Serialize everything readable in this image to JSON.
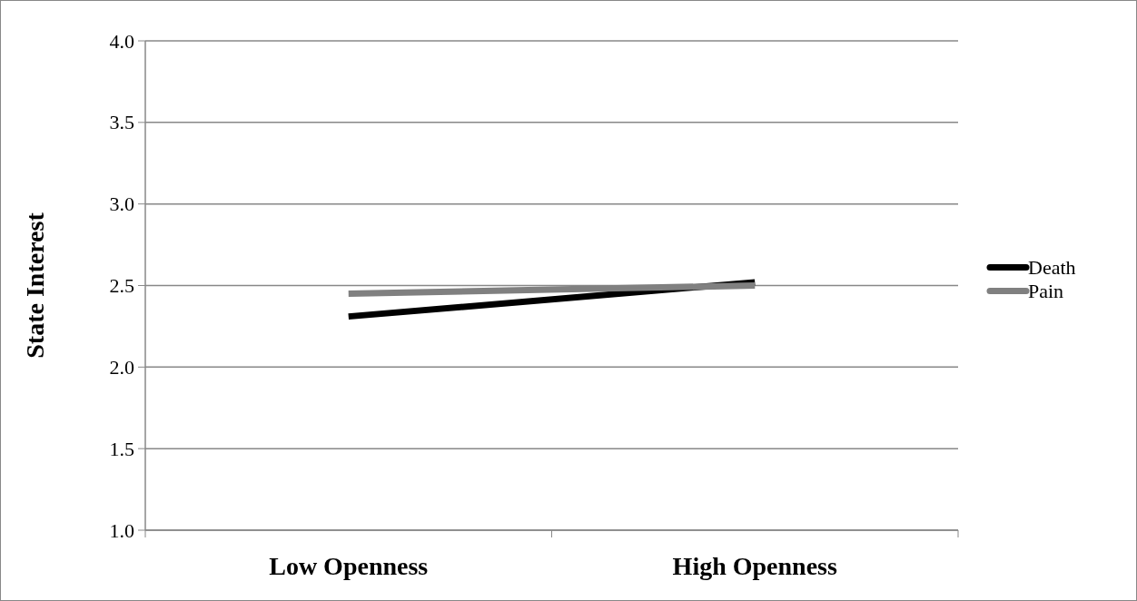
{
  "chart_data": {
    "type": "line",
    "ylabel": "State Interest",
    "categories": [
      "Low Openness",
      "High Openness"
    ],
    "series": [
      {
        "name": "Death",
        "color": "#000000",
        "values": [
          2.31,
          2.52
        ]
      },
      {
        "name": "Pain",
        "color": "#808080",
        "values": [
          2.45,
          2.5
        ]
      }
    ],
    "ylim": [
      1,
      4
    ],
    "yticks": [
      {
        "value": 1,
        "label": "1.0"
      },
      {
        "value": 1.5,
        "label": "1.5"
      },
      {
        "value": 2,
        "label": "2.0"
      },
      {
        "value": 2.5,
        "label": "2.5"
      },
      {
        "value": 3,
        "label": "3.0"
      },
      {
        "value": 3.5,
        "label": "3.5"
      },
      {
        "value": 4,
        "label": "4.0"
      }
    ],
    "grid": "y",
    "legend": "right",
    "line_style": "solid"
  }
}
